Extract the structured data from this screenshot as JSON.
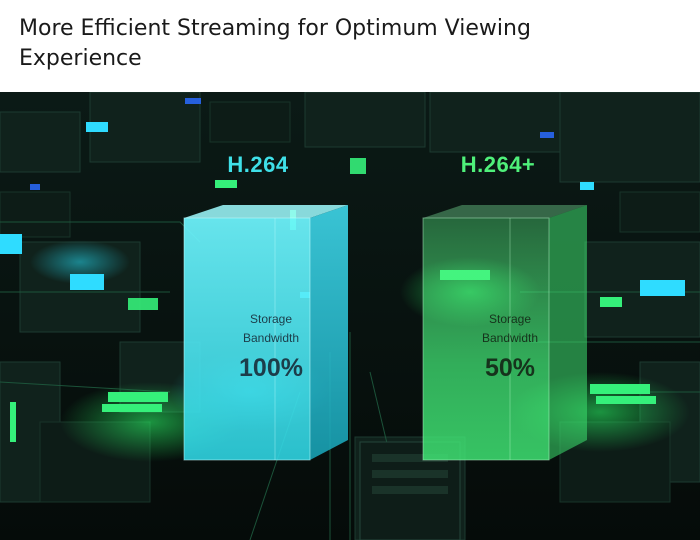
{
  "page": {
    "title": "More Efficient Streaming for Optimum Viewing Experience"
  },
  "colors": {
    "accent_cyan": "#3fe0e8",
    "accent_green": "#4ff07a",
    "background": "#07120e"
  },
  "comparison": [
    {
      "codec": "H.264",
      "label_line_1": "Storage",
      "label_line_2": "Bandwidth",
      "value": "100%",
      "color": "#3fe0e8"
    },
    {
      "codec": "H.264+",
      "label_line_1": "Storage",
      "label_line_2": "Bandwidth",
      "value": "50%",
      "color": "#4ff07a"
    }
  ]
}
